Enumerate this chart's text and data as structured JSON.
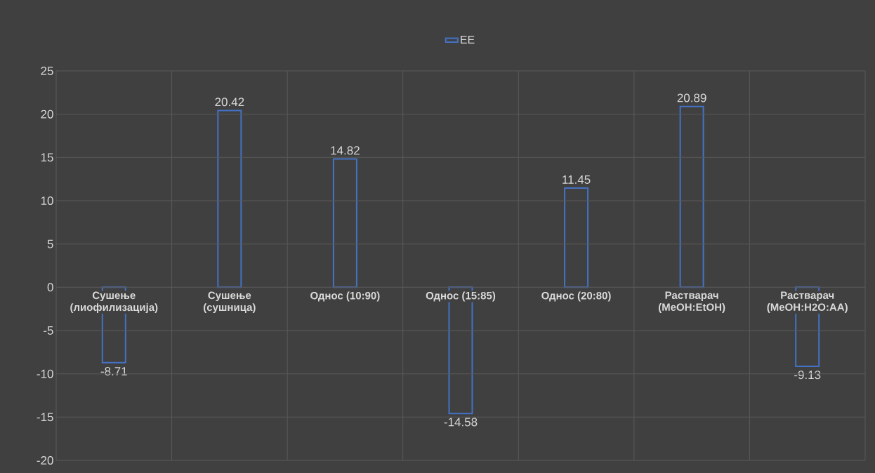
{
  "chart_data": {
    "type": "bar",
    "categories": [
      "Сушење (лиофилизација)",
      "Сушење (сушница)",
      "Однос (10:90)",
      "Однос (15:85)",
      "Однос (20:80)",
      "Растварач (MeOH:EtOH)",
      "Растварач (MeOH:H2O:AA)"
    ],
    "series": [
      {
        "name": "EE",
        "color": "#4472c4",
        "values": [
          -8.71,
          20.42,
          14.82,
          -14.58,
          11.45,
          20.89,
          -9.13
        ]
      }
    ],
    "ylim": [
      -20,
      25
    ],
    "yticks": [
      -20,
      -15,
      -10,
      -5,
      0,
      5,
      10,
      15,
      20,
      25
    ],
    "grid": true,
    "legend": "top",
    "data_labels": true
  }
}
